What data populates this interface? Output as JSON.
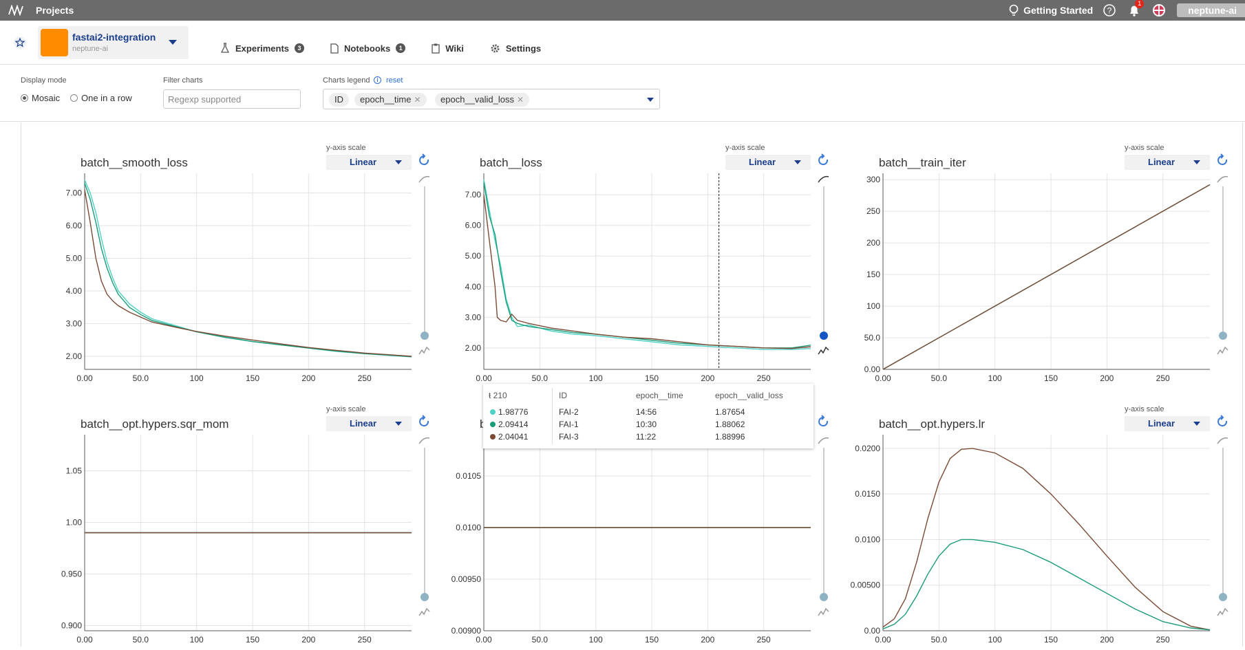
{
  "topbar": {
    "projects_label": "Projects",
    "getting_started": "Getting Started",
    "notification_count": "1",
    "user": "neptune-ai"
  },
  "project": {
    "name": "fastai2-integration",
    "org": "neptune-ai",
    "avatar_color": "#ff8c00"
  },
  "nav": {
    "experiments": "Experiments",
    "experiments_count": "3",
    "notebooks": "Notebooks",
    "notebooks_count": "1",
    "wiki": "Wiki",
    "settings": "Settings"
  },
  "toolbar": {
    "display_mode_label": "Display mode",
    "mode_mosaic": "Mosaic",
    "mode_one_row": "One in a row",
    "filter_label": "Filter charts",
    "filter_placeholder": "Regexp supported",
    "legend_label": "Charts legend",
    "reset": "reset",
    "chips": [
      "ID",
      "epoch__time",
      "epoch__valid_loss"
    ]
  },
  "colors": {
    "FAI-2": "#4fd1c5",
    "FAI-1": "#1a9c78",
    "FAI-3": "#7a4a35",
    "accent": "#1a3e8c"
  },
  "scale": {
    "label": "y-axis scale",
    "value": "Linear"
  },
  "tooltip": {
    "step": "210",
    "headers": [
      "ID",
      "epoch__time",
      "epoch__valid_loss"
    ],
    "rows": [
      {
        "value": "1.98776",
        "id": "FAI-2",
        "time": "14:56",
        "valid_loss": "1.87654"
      },
      {
        "value": "2.09414",
        "id": "FAI-1",
        "time": "10:30",
        "valid_loss": "1.88062"
      },
      {
        "value": "2.04041",
        "id": "FAI-3",
        "time": "11:22",
        "valid_loss": "1.88996"
      }
    ]
  },
  "chart_data": [
    {
      "type": "line",
      "title": "batch__smooth_loss",
      "xlim": [
        0,
        292
      ],
      "ylim": [
        1.6,
        7.6
      ],
      "xticks": [
        "0.00",
        "50.0",
        "100",
        "150",
        "200",
        "250"
      ],
      "xtick_values": [
        0,
        50,
        100,
        150,
        200,
        250
      ],
      "yticks": [
        "2.00",
        "3.00",
        "4.00",
        "5.00",
        "6.00",
        "7.00"
      ],
      "ytick_values": [
        2,
        3,
        4,
        5,
        6,
        7
      ],
      "series": [
        {
          "id": "FAI-2",
          "x": [
            0,
            5,
            10,
            15,
            20,
            25,
            30,
            40,
            50,
            60,
            80,
            100,
            125,
            150,
            175,
            200,
            225,
            250,
            275,
            292
          ],
          "y": [
            7.4,
            7.0,
            6.4,
            5.6,
            4.9,
            4.4,
            4.0,
            3.6,
            3.35,
            3.15,
            2.95,
            2.75,
            2.6,
            2.45,
            2.35,
            2.25,
            2.15,
            2.08,
            2.02,
            1.98
          ]
        },
        {
          "id": "FAI-1",
          "x": [
            0,
            5,
            10,
            15,
            20,
            25,
            30,
            40,
            50,
            60,
            80,
            100,
            125,
            150,
            175,
            200,
            225,
            250,
            275,
            292
          ],
          "y": [
            7.3,
            6.8,
            6.1,
            5.3,
            4.7,
            4.25,
            3.9,
            3.5,
            3.28,
            3.1,
            2.92,
            2.75,
            2.58,
            2.45,
            2.35,
            2.25,
            2.16,
            2.08,
            2.03,
            1.99
          ]
        },
        {
          "id": "FAI-3",
          "x": [
            0,
            5,
            10,
            15,
            20,
            25,
            30,
            40,
            50,
            60,
            80,
            100,
            125,
            150,
            175,
            200,
            225,
            250,
            275,
            292
          ],
          "y": [
            7.1,
            6.1,
            5.0,
            4.3,
            3.9,
            3.7,
            3.55,
            3.35,
            3.2,
            3.05,
            2.9,
            2.76,
            2.62,
            2.5,
            2.38,
            2.27,
            2.18,
            2.1,
            2.04,
            2.0
          ]
        }
      ]
    },
    {
      "type": "line",
      "title": "batch__loss",
      "xlim": [
        0,
        292
      ],
      "ylim": [
        1.3,
        7.7
      ],
      "xticks": [
        "0.00",
        "50.0",
        "100",
        "150",
        "200",
        "250"
      ],
      "xtick_values": [
        0,
        50,
        100,
        150,
        200,
        250
      ],
      "yticks": [
        "2.00",
        "3.00",
        "4.00",
        "5.00",
        "6.00",
        "7.00"
      ],
      "ytick_values": [
        2,
        3,
        4,
        5,
        6,
        7
      ],
      "hover_x": 210,
      "series": [
        {
          "id": "FAI-2",
          "x": [
            0,
            5,
            10,
            15,
            20,
            25,
            30,
            40,
            60,
            80,
            100,
            125,
            150,
            175,
            200,
            225,
            250,
            275,
            292
          ],
          "y": [
            7.5,
            6.5,
            5.5,
            4.7,
            3.6,
            3.0,
            2.7,
            2.75,
            2.55,
            2.45,
            2.4,
            2.3,
            2.2,
            2.1,
            2.05,
            2.0,
            1.95,
            1.95,
            1.98
          ]
        },
        {
          "id": "FAI-1",
          "x": [
            0,
            5,
            10,
            15,
            20,
            25,
            30,
            40,
            60,
            80,
            100,
            125,
            150,
            175,
            200,
            225,
            250,
            275,
            292
          ],
          "y": [
            7.4,
            6.3,
            5.7,
            4.5,
            3.5,
            2.9,
            2.8,
            2.7,
            2.6,
            2.5,
            2.45,
            2.35,
            2.25,
            2.15,
            2.1,
            2.05,
            2.0,
            2.0,
            2.09
          ]
        },
        {
          "id": "FAI-3",
          "x": [
            0,
            5,
            10,
            12,
            15,
            20,
            25,
            30,
            40,
            60,
            80,
            100,
            125,
            150,
            175,
            200,
            225,
            250,
            275,
            292
          ],
          "y": [
            7.0,
            5.5,
            4.0,
            3.0,
            2.9,
            2.85,
            3.1,
            2.9,
            2.8,
            2.65,
            2.55,
            2.45,
            2.35,
            2.3,
            2.2,
            2.1,
            2.05,
            2.0,
            1.98,
            2.04
          ]
        }
      ]
    },
    {
      "type": "line",
      "title": "batch__train_iter",
      "xlim": [
        0,
        292
      ],
      "ylim": [
        0,
        310
      ],
      "xticks": [
        "0.00",
        "50.0",
        "100",
        "150",
        "200",
        "250"
      ],
      "xtick_values": [
        0,
        50,
        100,
        150,
        200,
        250
      ],
      "yticks": [
        "0.00",
        "50.0",
        "100",
        "150",
        "200",
        "250",
        "300"
      ],
      "ytick_values": [
        0,
        50,
        100,
        150,
        200,
        250,
        300
      ],
      "series": [
        {
          "id": "FAI-1",
          "x": [
            0,
            292
          ],
          "y": [
            0,
            292
          ]
        },
        {
          "id": "FAI-3",
          "x": [
            0,
            292
          ],
          "y": [
            0,
            292
          ]
        }
      ]
    },
    {
      "type": "line",
      "title": "batch__opt.hypers.sqr_mom",
      "xlim": [
        0,
        292
      ],
      "ylim": [
        0.895,
        1.085
      ],
      "xticks": [
        "0.00",
        "50.0",
        "100",
        "150",
        "200",
        "250"
      ],
      "xtick_values": [
        0,
        50,
        100,
        150,
        200,
        250
      ],
      "yticks": [
        "0.900",
        "0.950",
        "1.00",
        "1.05"
      ],
      "ytick_values": [
        0.9,
        0.95,
        1.0,
        1.05
      ],
      "series": [
        {
          "id": "FAI-1",
          "x": [
            0,
            292
          ],
          "y": [
            0.99,
            0.99
          ]
        },
        {
          "id": "FAI-3",
          "x": [
            0,
            292
          ],
          "y": [
            0.99,
            0.99
          ]
        }
      ]
    },
    {
      "type": "line",
      "title": "b",
      "xlim": [
        0,
        292
      ],
      "ylim": [
        0.009,
        0.0109
      ],
      "xticks": [
        "0.00",
        "50.0",
        "100",
        "150",
        "200",
        "250"
      ],
      "xtick_values": [
        0,
        50,
        100,
        150,
        200,
        250
      ],
      "yticks": [
        "0.00900",
        "0.00950",
        "0.0100",
        "0.0105"
      ],
      "ytick_values": [
        0.009,
        0.0095,
        0.01,
        0.0105
      ],
      "series": [
        {
          "id": "FAI-1",
          "x": [
            0,
            292
          ],
          "y": [
            0.01,
            0.01
          ]
        },
        {
          "id": "FAI-3",
          "x": [
            0,
            292
          ],
          "y": [
            0.01,
            0.01
          ]
        }
      ]
    },
    {
      "type": "line",
      "title": "batch__opt.hypers.lr",
      "xlim": [
        0,
        292
      ],
      "ylim": [
        0,
        0.0215
      ],
      "xticks": [
        "0.00",
        "50.0",
        "100",
        "150",
        "200",
        "250"
      ],
      "xtick_values": [
        0,
        50,
        100,
        150,
        200,
        250
      ],
      "yticks": [
        "0.00",
        "0.00500",
        "0.0100",
        "0.0150",
        "0.0200"
      ],
      "ytick_values": [
        0,
        0.005,
        0.01,
        0.015,
        0.02
      ],
      "series": [
        {
          "id": "FAI-3",
          "x": [
            0,
            10,
            20,
            30,
            40,
            50,
            60,
            70,
            80,
            100,
            125,
            150,
            175,
            200,
            225,
            250,
            275,
            292
          ],
          "y": [
            0.0004,
            0.0013,
            0.0035,
            0.0075,
            0.0123,
            0.0163,
            0.0189,
            0.0199,
            0.02,
            0.0195,
            0.0178,
            0.015,
            0.0117,
            0.0082,
            0.0048,
            0.0021,
            0.0005,
            0.0001
          ]
        },
        {
          "id": "FAI-1",
          "x": [
            0,
            10,
            20,
            30,
            40,
            50,
            60,
            70,
            80,
            100,
            125,
            150,
            175,
            200,
            225,
            250,
            275,
            292
          ],
          "y": [
            0.0002,
            0.0007,
            0.0018,
            0.0038,
            0.0062,
            0.0082,
            0.0095,
            0.01,
            0.01,
            0.0097,
            0.0089,
            0.0075,
            0.0058,
            0.0041,
            0.0024,
            0.001,
            0.0003,
            0.0001
          ]
        }
      ]
    }
  ]
}
